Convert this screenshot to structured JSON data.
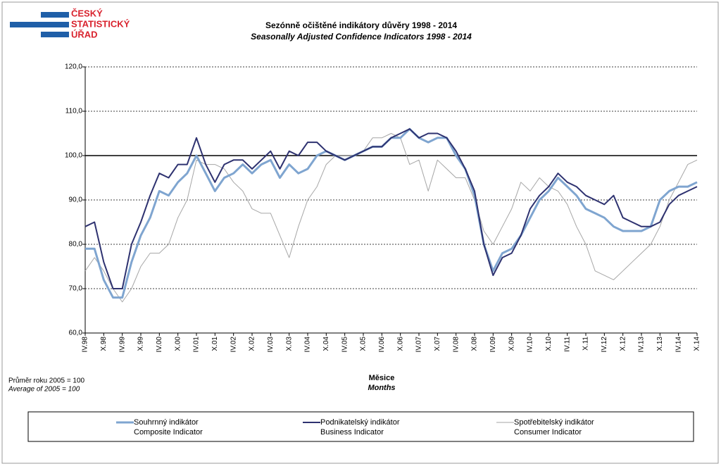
{
  "logo": {
    "lines": [
      "ČESKÝ",
      "STATISTICKÝ",
      "ÚŘAD"
    ]
  },
  "chart_data": {
    "type": "line",
    "title": "Sezónně očištěné indikátory důvěry  1998 - 2014",
    "subtitle": "Seasonally Adjusted Confidence Indicators  1998 - 2014",
    "x_label": "Měsice",
    "x_label_en": "Months",
    "note": "Průměr roku 2005 = 100",
    "note_en": "Average of 2005 = 100",
    "categories": [
      "IV.98",
      null,
      "X.98",
      null,
      "IV.99",
      null,
      "X.99",
      null,
      "IV.00",
      null,
      "X.00",
      null,
      "IV.01",
      null,
      "X.01",
      null,
      "IV.02",
      null,
      "X.02",
      null,
      "IV.03",
      null,
      "X.03",
      null,
      "IV.04",
      null,
      "X.04",
      null,
      "IV.05",
      null,
      "X.05",
      null,
      "IV.06",
      null,
      "X.06",
      null,
      "IV.07",
      null,
      "X.07",
      null,
      "IV.08",
      null,
      "X.08",
      null,
      "IV.09",
      null,
      "X.09",
      null,
      "IV.10",
      null,
      "X.10",
      null,
      "IV.11",
      null,
      "X.11",
      null,
      "IV.12",
      null,
      "X.12",
      null,
      "IV.13",
      null,
      "X.13",
      null,
      "IV.14",
      null,
      "X.14"
    ],
    "series": [
      {
        "name": "Souhrnný indikátor",
        "name_en": "Composite Indicator",
        "color": "#7fa5d0",
        "width": 3,
        "values": [
          79,
          79,
          72,
          68,
          68,
          76,
          82,
          86,
          92,
          91,
          94,
          96,
          100,
          96,
          92,
          95,
          96,
          98,
          96,
          98,
          99,
          95,
          98,
          96,
          97,
          100,
          101,
          100,
          99,
          100,
          101,
          102,
          102,
          104,
          104,
          106,
          104,
          103,
          104,
          104,
          100,
          97,
          91,
          80,
          74,
          78,
          79,
          82,
          86,
          90,
          92,
          95,
          93,
          91,
          88,
          87,
          86,
          84,
          83,
          83,
          83,
          84,
          90,
          92,
          93,
          93,
          94
        ]
      },
      {
        "name": "Podnikatelský indikátor",
        "name_en": "Business Indicator",
        "color": "#2e3270",
        "width": 2,
        "values": [
          84,
          85,
          76,
          70,
          70,
          80,
          85,
          91,
          96,
          95,
          98,
          98,
          104,
          98,
          94,
          98,
          99,
          99,
          97,
          99,
          101,
          97,
          101,
          100,
          103,
          103,
          101,
          100,
          99,
          100,
          101,
          102,
          102,
          104,
          105,
          106,
          104,
          105,
          105,
          104,
          101,
          97,
          92,
          80,
          73,
          77,
          78,
          82,
          88,
          91,
          93,
          96,
          94,
          93,
          91,
          90,
          89,
          91,
          86,
          85,
          84,
          84,
          85,
          89,
          91,
          92,
          93
        ]
      },
      {
        "name": "Spotřebitelský indikátor",
        "name_en": "Consumer Indicator",
        "color": "#a6a6a6",
        "width": 1,
        "values": [
          74,
          77,
          74,
          70,
          67,
          70,
          75,
          78,
          78,
          80,
          86,
          90,
          99,
          98,
          98,
          97,
          94,
          92,
          88,
          87,
          87,
          82,
          77,
          84,
          90,
          93,
          98,
          100,
          100,
          100,
          101,
          104,
          104,
          105,
          104,
          98,
          99,
          92,
          99,
          97,
          95,
          95,
          90,
          83,
          80,
          84,
          88,
          94,
          92,
          95,
          93,
          92,
          89,
          84,
          80,
          74,
          73,
          72,
          74,
          76,
          78,
          80,
          84,
          90,
          94,
          98,
          99
        ]
      }
    ],
    "ylim": [
      60,
      120
    ],
    "yticks": [
      {
        "value": 60,
        "label": "60,0"
      },
      {
        "value": 70,
        "label": "70,0"
      },
      {
        "value": 80,
        "label": "80,0"
      },
      {
        "value": 90,
        "label": "90,0"
      },
      {
        "value": 100,
        "label": "100,0"
      },
      {
        "value": 110,
        "label": "110,0"
      },
      {
        "value": 120,
        "label": "120,0"
      }
    ],
    "grid": true,
    "baseline": 100,
    "legend": "bottom"
  }
}
